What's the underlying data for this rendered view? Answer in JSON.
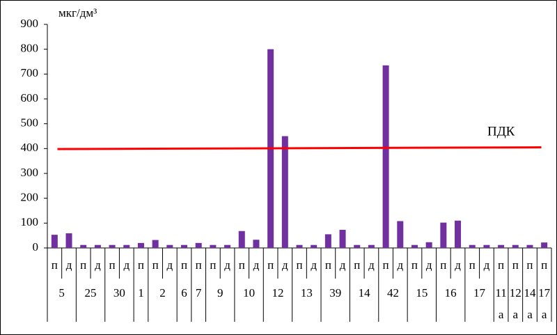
{
  "chart_data": {
    "type": "bar",
    "y_label": "мкг/дм³",
    "color": "#7030a0",
    "ylim": [
      0,
      900
    ],
    "yticks": [
      0,
      100,
      200,
      300,
      400,
      500,
      600,
      700,
      800,
      900
    ],
    "reference_line": {
      "label": "ПДК",
      "start": 398,
      "end": 405,
      "color": "#ff0000"
    },
    "groups": [
      {
        "label": "5",
        "categories": [
          "п",
          "д"
        ],
        "values": [
          53,
          59
        ]
      },
      {
        "label": "25",
        "categories": [
          "п",
          "д"
        ],
        "values": [
          12,
          12
        ]
      },
      {
        "label": "30",
        "categories": [
          "п",
          "д"
        ],
        "values": [
          12,
          12
        ]
      },
      {
        "label": "1",
        "categories": [
          "п"
        ],
        "values": [
          20
        ]
      },
      {
        "label": "2",
        "categories": [
          "п",
          "д"
        ],
        "values": [
          32,
          12
        ]
      },
      {
        "label": "6",
        "categories": [
          "п"
        ],
        "values": [
          12
        ]
      },
      {
        "label": "7",
        "categories": [
          "п"
        ],
        "values": [
          20
        ]
      },
      {
        "label": "9",
        "categories": [
          "п",
          "д"
        ],
        "values": [
          12,
          12
        ]
      },
      {
        "label": "10",
        "categories": [
          "п",
          "д"
        ],
        "values": [
          68,
          33
        ]
      },
      {
        "label": "12",
        "categories": [
          "п",
          "д"
        ],
        "values": [
          800,
          450
        ]
      },
      {
        "label": "13",
        "categories": [
          "п",
          "д"
        ],
        "values": [
          12,
          12
        ]
      },
      {
        "label": "39",
        "categories": [
          "п",
          "д"
        ],
        "values": [
          55,
          73
        ]
      },
      {
        "label": "14",
        "categories": [
          "п",
          "д"
        ],
        "values": [
          12,
          12
        ]
      },
      {
        "label": "42",
        "categories": [
          "п",
          "д"
        ],
        "values": [
          735,
          108
        ]
      },
      {
        "label": "15",
        "categories": [
          "п",
          "д"
        ],
        "values": [
          12,
          23
        ]
      },
      {
        "label": "16",
        "categories": [
          "п",
          "д"
        ],
        "values": [
          102,
          110
        ]
      },
      {
        "label": "17",
        "categories": [
          "п",
          "д"
        ],
        "values": [
          12,
          12
        ]
      },
      {
        "label": "11а",
        "categories": [
          "п"
        ],
        "values": [
          12
        ]
      },
      {
        "label": "12а",
        "categories": [
          "п"
        ],
        "values": [
          12
        ]
      },
      {
        "label": "14а",
        "categories": [
          "п"
        ],
        "values": [
          12
        ]
      },
      {
        "label": "17а",
        "categories": [
          "п"
        ],
        "values": [
          22
        ]
      }
    ]
  }
}
